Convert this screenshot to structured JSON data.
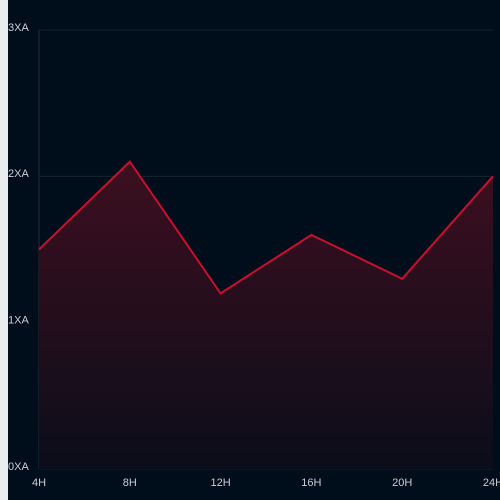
{
  "chart_data": {
    "type": "area",
    "categories": [
      "4H",
      "8H",
      "12H",
      "16H",
      "20H",
      "24H"
    ],
    "values": [
      1.5,
      2.1,
      1.2,
      1.6,
      1.3,
      2.0
    ],
    "color": "#c8102e",
    "ylim": [
      0,
      3
    ],
    "yticks": [
      {
        "value": 0,
        "label": "0XA"
      },
      {
        "value": 1,
        "label": "1XA"
      },
      {
        "value": 2,
        "label": "2XA"
      },
      {
        "value": 3,
        "label": "3XA"
      }
    ],
    "grid": true
  }
}
